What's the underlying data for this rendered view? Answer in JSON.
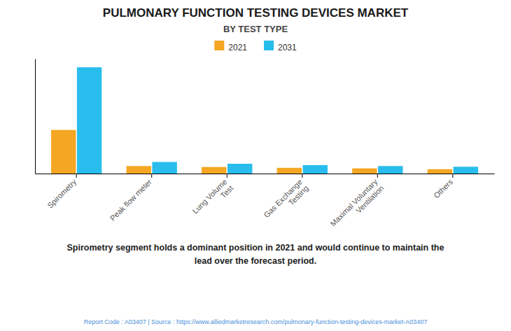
{
  "chart_data": {
    "type": "bar",
    "title": "PULMONARY FUNCTION TESTING DEVICES MARKET",
    "subtitle": "BY TEST TYPE",
    "categories": [
      "Spirometry",
      "Peak flow meter",
      "Lung Volume\nTest",
      "Gas Exchange\nTesting",
      "Maximal Voluntary\nVentilation",
      "Others"
    ],
    "series": [
      {
        "name": "2021",
        "color": "#F5A623",
        "values": [
          3.2,
          0.55,
          0.48,
          0.42,
          0.38,
          0.32
        ]
      },
      {
        "name": "2031",
        "color": "#29BDED",
        "values": [
          7.8,
          0.85,
          0.72,
          0.62,
          0.55,
          0.5
        ]
      }
    ],
    "ylim": [
      0,
      8.424
    ],
    "yticks": [],
    "grid": false,
    "tick_labels": "x",
    "legend": "top",
    "annotations": [
      "Spirometry segment holds a dominant position in 2021 and would continue to maintain the",
      "lead over the forecast period."
    ],
    "footer": "Report Code : A03407  |  Source : https://www.alliedmarketresearch.com/pulmonary-function-testing-devices-market-A03407"
  }
}
